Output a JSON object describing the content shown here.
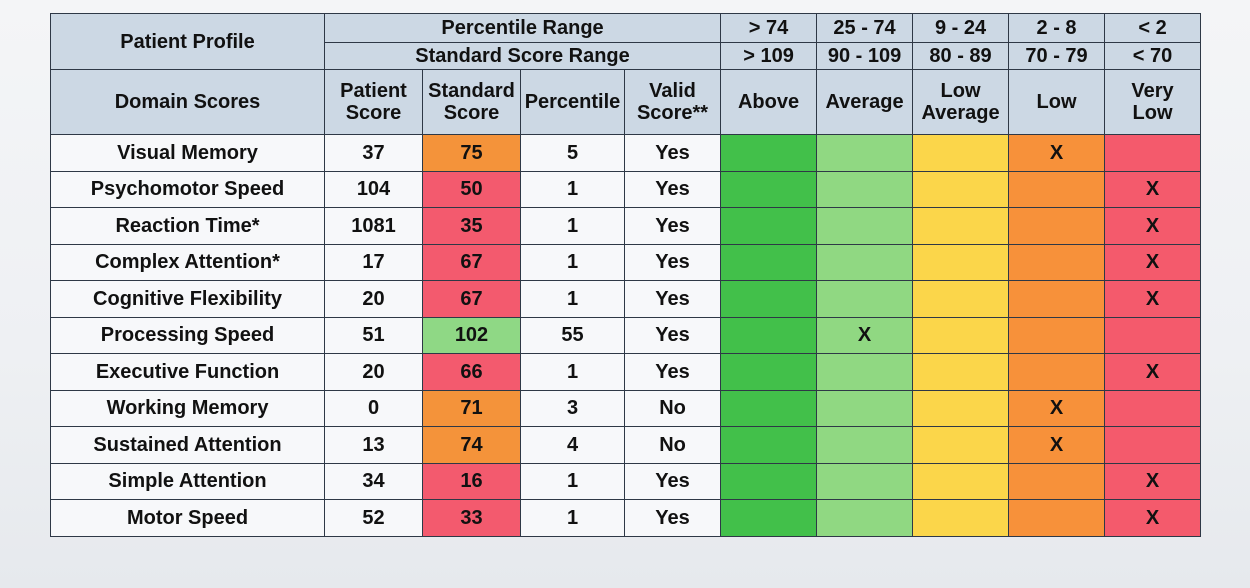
{
  "header": {
    "patient_profile": "Patient Profile",
    "domain_scores": "Domain Scores",
    "percentile_range_label": "Percentile Range",
    "standard_score_range_label": "Standard Score Range",
    "percentile_ranges": [
      "> 74",
      "25 - 74",
      "9 - 24",
      "2 - 8",
      "< 2"
    ],
    "standard_score_ranges": [
      "> 109",
      "90 - 109",
      "80 - 89",
      "70 - 79",
      "< 70"
    ],
    "columns": {
      "patient_score": [
        "Patient",
        "Score"
      ],
      "standard_score": [
        "Standard",
        "Score"
      ],
      "percentile": "Percentile",
      "valid_score": [
        "Valid",
        "Score**"
      ]
    },
    "bands": [
      [
        "Above"
      ],
      [
        "Average"
      ],
      [
        "Low",
        "Average"
      ],
      [
        "Low"
      ],
      [
        "Very",
        "Low"
      ]
    ]
  },
  "mark": "X",
  "colors": {
    "header": "#ccd8e4",
    "above": "#42c04a",
    "average": "#90d882",
    "low_average": "#fbd64a",
    "low": "#f7913a",
    "very_low": "#f45a6c"
  },
  "rows": [
    {
      "domain": "Visual Memory",
      "patient_score": "37",
      "standard_score": "75",
      "percentile": "5",
      "valid": "Yes",
      "band": 3
    },
    {
      "domain": "Psychomotor Speed",
      "patient_score": "104",
      "standard_score": "50",
      "percentile": "1",
      "valid": "Yes",
      "band": 4
    },
    {
      "domain": "Reaction Time*",
      "patient_score": "1081",
      "standard_score": "35",
      "percentile": "1",
      "valid": "Yes",
      "band": 4
    },
    {
      "domain": "Complex Attention*",
      "patient_score": "17",
      "standard_score": "67",
      "percentile": "1",
      "valid": "Yes",
      "band": 4
    },
    {
      "domain": "Cognitive Flexibility",
      "patient_score": "20",
      "standard_score": "67",
      "percentile": "1",
      "valid": "Yes",
      "band": 4
    },
    {
      "domain": "Processing Speed",
      "patient_score": "51",
      "standard_score": "102",
      "percentile": "55",
      "valid": "Yes",
      "band": 1
    },
    {
      "domain": "Executive Function",
      "patient_score": "20",
      "standard_score": "66",
      "percentile": "1",
      "valid": "Yes",
      "band": 4
    },
    {
      "domain": "Working Memory",
      "patient_score": "0",
      "standard_score": "71",
      "percentile": "3",
      "valid": "No",
      "band": 3
    },
    {
      "domain": "Sustained Attention",
      "patient_score": "13",
      "standard_score": "74",
      "percentile": "4",
      "valid": "No",
      "band": 3
    },
    {
      "domain": "Simple Attention",
      "patient_score": "34",
      "standard_score": "16",
      "percentile": "1",
      "valid": "Yes",
      "band": 4
    },
    {
      "domain": "Motor Speed",
      "patient_score": "52",
      "standard_score": "33",
      "percentile": "1",
      "valid": "Yes",
      "band": 4
    }
  ]
}
